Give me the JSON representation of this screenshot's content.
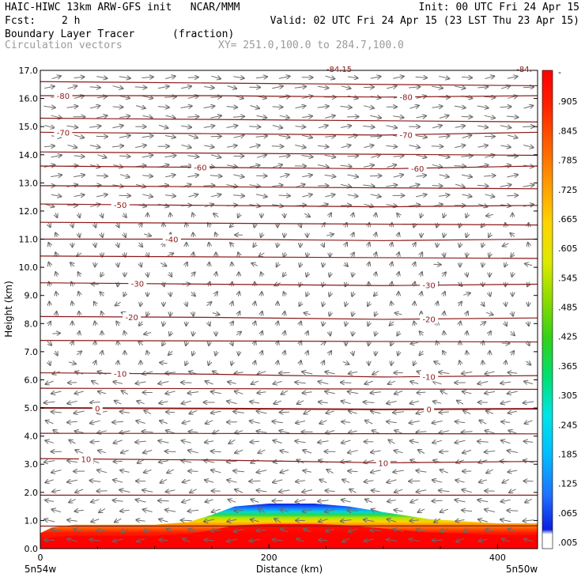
{
  "header": {
    "line1_left": "HAIC-HIWC 13km ARW-GFS init   NCAR/MMM",
    "line1_right": "Init: 00 UTC Fri 24 Apr 15",
    "fcst_label": "Fcst:",
    "fcst_value": "2 h",
    "valid": "Valid: 02 UTC Fri 24 Apr 15 (23 LST Thu 23 Apr 15)",
    "field_name": "Boundary Layer Tracer",
    "field_units": "(fraction)",
    "vector_label": "Circulation vectors",
    "xy_label": "XY= 251.0,100.0 to 284.7,100.0"
  },
  "chart_data": {
    "type": "contour cross-section",
    "ylabel": "Height (km)",
    "xlabel": "Distance (km)",
    "ylim": [
      0.0,
      17.0
    ],
    "xlim": [
      0,
      435
    ],
    "y_ticks": [
      "0.0",
      "1.0",
      "2.0",
      "3.0",
      "4.0",
      "5.0",
      "6.0",
      "7.0",
      "8.0",
      "9.0",
      "10.0",
      "11.0",
      "12.0",
      "13.0",
      "14.0",
      "15.0",
      "16.0",
      "17.0"
    ],
    "x_ticks": [
      "0",
      "200",
      "400"
    ],
    "x_tick_values": [
      0,
      200,
      400
    ],
    "x_endpoint_left": "5n54w",
    "x_endpoint_right": "5n50w",
    "top_partial_labels": [
      "-84.15",
      "-84."
    ],
    "temperature_contours": [
      {
        "label": "10",
        "heights": [
          3.2,
          3.15,
          3.05,
          3.1
        ]
      },
      {
        "label": "0",
        "heights": [
          5.0,
          4.98,
          4.95,
          4.97
        ]
      },
      {
        "label": "-10",
        "heights": [
          6.25,
          6.2,
          6.1,
          6.15
        ]
      },
      {
        "label": "-20",
        "heights": [
          8.25,
          8.22,
          8.15,
          8.2
        ]
      },
      {
        "label": "-30",
        "heights": [
          9.45,
          9.4,
          9.35,
          9.4
        ]
      },
      {
        "label": "-40",
        "heights": [
          11.0,
          11.0,
          10.95,
          11.0
        ]
      },
      {
        "label": "-50",
        "heights": [
          12.25,
          12.2,
          12.15,
          12.2
        ]
      },
      {
        "label": "-60",
        "heights": [
          13.6,
          13.55,
          13.5,
          13.6
        ]
      },
      {
        "label": "-70",
        "heights": [
          14.8,
          14.75,
          14.7,
          14.8
        ]
      },
      {
        "label": "-80",
        "heights": [
          16.1,
          16.1,
          16.05,
          16.1
        ]
      }
    ],
    "unlabeled_contours": [
      0.8,
      1.9,
      4.1,
      5.7,
      7.4,
      10.4,
      11.6,
      12.9,
      14.1,
      15.3,
      16.6
    ],
    "colorbar": {
      "labels": [
        ".005",
        ".065",
        ".125",
        ".185",
        ".245",
        ".305",
        ".365",
        ".425",
        ".485",
        ".545",
        ".605",
        ".665",
        ".725",
        ".785",
        ".845",
        ".905",
        "-"
      ]
    },
    "tracer_top_km": [
      0.55,
      0.75,
      0.85,
      0.85,
      0.95,
      1.2,
      1.5,
      1.6,
      1.6,
      1.5,
      1.3,
      1.05,
      0.95,
      0.9,
      0.9,
      0.9
    ],
    "tracer_top_x": [
      0,
      10,
      30,
      100,
      130,
      150,
      170,
      200,
      240,
      270,
      300,
      340,
      380,
      400,
      420,
      435
    ]
  }
}
